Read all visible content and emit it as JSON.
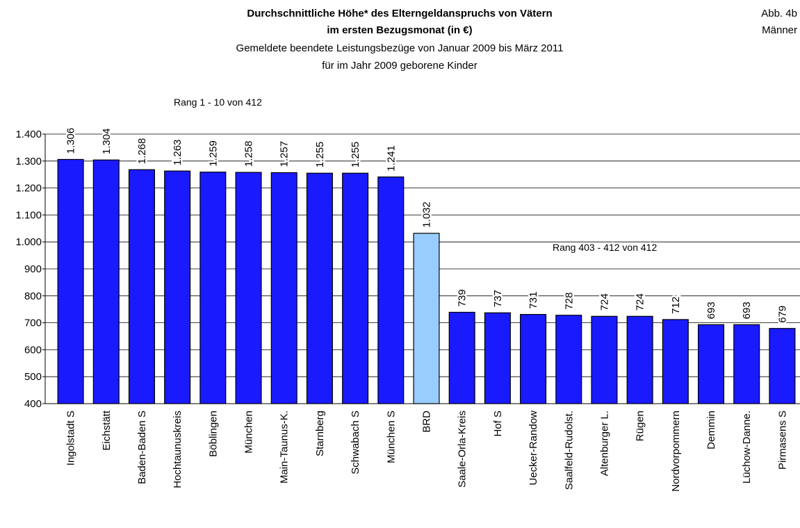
{
  "chart_data": {
    "type": "bar",
    "title": [
      "Durchschnittliche Höhe* des Elterngeldanspruchs von Vätern",
      "im ersten Bezugsmonat (in €)"
    ],
    "subtitle": [
      "Gemeldete beendete Leistungsbezüge von Januar 2009 bis März 2011",
      "für im Jahr 2009 geborene Kinder"
    ],
    "figure_label": [
      "Abb. 4b",
      "Männer"
    ],
    "annotations": [
      "Rang 1 - 10 von 412",
      "Rang 403 - 412 von 412"
    ],
    "categories": [
      "Ingolstadt S",
      "Eichstätt",
      "Baden-Baden S",
      "Hochtaunuskreis",
      "Böblingen",
      "München",
      "Main-Taunus-K.",
      "Starnberg",
      "Schwabach S",
      "München S",
      "BRD",
      "Saale-Orla-Kreis",
      "Hof S",
      "Uecker-Randow",
      "Saalfeld-Rudolst.",
      "Altenburger L.",
      "Rügen",
      "Nordvorpommern",
      "Demmin",
      "Lüchow-Danne.",
      "Pirmasens S"
    ],
    "values": [
      1306,
      1304,
      1268,
      1263,
      1259,
      1258,
      1257,
      1255,
      1255,
      1241,
      1032,
      739,
      737,
      731,
      728,
      724,
      724,
      712,
      693,
      693,
      679
    ],
    "value_labels": [
      "1.306",
      "1.304",
      "1.268",
      "1.263",
      "1.259",
      "1.258",
      "1.257",
      "1.255",
      "1.255",
      "1.241",
      "1.032",
      "739",
      "737",
      "731",
      "728",
      "724",
      "724",
      "712",
      "693",
      "693",
      "679"
    ],
    "colors": [
      "#1a1aff",
      "#1a1aff",
      "#1a1aff",
      "#1a1aff",
      "#1a1aff",
      "#1a1aff",
      "#1a1aff",
      "#1a1aff",
      "#1a1aff",
      "#1a1aff",
      "#99ccff",
      "#1a1aff",
      "#1a1aff",
      "#1a1aff",
      "#1a1aff",
      "#1a1aff",
      "#1a1aff",
      "#1a1aff",
      "#1a1aff",
      "#1a1aff",
      "#1a1aff"
    ],
    "ylim": [
      400,
      1400
    ],
    "yticks": [
      400,
      500,
      600,
      700,
      800,
      900,
      {
        "value": 1000,
        "label": "1.000"
      },
      {
        "value": 1100,
        "label": "1.100"
      },
      {
        "value": 1200,
        "label": "1.200"
      },
      {
        "value": 1300,
        "label": "1.300"
      },
      {
        "value": 1400,
        "label": "1.400"
      }
    ],
    "grid": true
  }
}
